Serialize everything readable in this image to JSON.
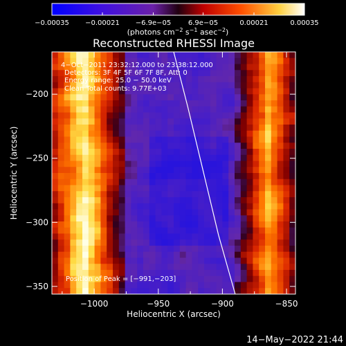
{
  "chart_data": {
    "type": "heatmap",
    "title": "Reconstructed RHESSI Image",
    "xlabel": "Heliocentric X (arcsec)",
    "ylabel": "Heliocentric Y (arcsec)",
    "xlim": [
      -1033,
      -843
    ],
    "ylim": [
      -356,
      -167
    ],
    "x_ticks": [
      -1000,
      -950,
      -900,
      -850
    ],
    "x_tick_labels": [
      "−1000",
      "−950",
      "−900",
      "−850"
    ],
    "y_ticks": [
      -200,
      -250,
      -300,
      -350
    ],
    "y_tick_labels": [
      "−200",
      "−250",
      "−300",
      "−350"
    ],
    "colorbar": {
      "range": [
        -0.00035,
        0.00035
      ],
      "ticks": [
        -0.00035,
        -0.00021,
        -6.9e-05,
        6.9e-05,
        0.00021,
        0.00035
      ],
      "tick_labels": [
        "−0.00035",
        "−0.00021",
        "−6.9e−05",
        "6.9e−05",
        "0.00021",
        "0.00035"
      ],
      "units_text": "(photons cm",
      "units_exp1": "−2",
      "units_mid": " s",
      "units_exp2": "−1",
      "units_mid2": " asec",
      "units_exp3": "−2",
      "units_end": ")"
    },
    "annotations": {
      "time_range": "4−Oct−2011 23:32:12.000 to 23:38:12.000",
      "detectors": "Detectors: 3F 4F 5F 6F 7F 8F, Att: 0",
      "energy": "Energy range: 25.0 − 50.0 keV",
      "clean": "Clean    Total counts: 9.77E+03",
      "peak": "Position of Peak = [−991,−203]"
    },
    "limb_line_points": [
      [
        -938,
        -167
      ],
      [
        -927,
        -210
      ],
      [
        -915,
        -260
      ],
      [
        -903,
        -310
      ],
      [
        -890,
        -356
      ]
    ],
    "grid_cells": [
      40,
      40
    ],
    "colors": {
      "low": "#0000ff",
      "mid_low": "#6020b0",
      "zero": "#1a0030",
      "mid_high": "#d01010",
      "high": "#ffff80",
      "top": "#ffffff"
    }
  },
  "footer": {
    "timestamp": "14−May−2022 21:44"
  }
}
